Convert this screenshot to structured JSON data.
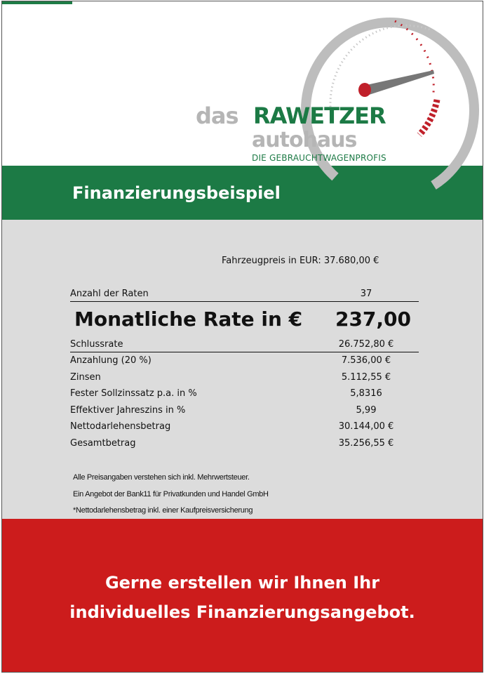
{
  "logo": {
    "das": "das",
    "brand": "RAWETZER",
    "sub": "autohaus",
    "tagline": "DIE GEBRAUCHTWAGENPROFIS"
  },
  "header": {
    "title": "Finanzierungsbeispiel"
  },
  "price": {
    "label": "Fahrzeugpreis in EUR:",
    "value": "37.680,00 €"
  },
  "rows": [
    {
      "label": "Anzahl der Raten",
      "value": "37"
    },
    {
      "label": "Monatliche Rate in €",
      "value": "237,00"
    },
    {
      "label": "Schlussrate",
      "value": "26.752,80 €"
    },
    {
      "label": "Anzahlung (20 %)",
      "value": "7.536,00 €"
    },
    {
      "label": "Zinsen",
      "value": "5.112,55 €"
    },
    {
      "label": "Fester Sollzinssatz p.a. in %",
      "value": "5,8316"
    },
    {
      "label": "Effektiver Jahreszins in %",
      "value": "5,99"
    },
    {
      "label": "Nettodarlehensbetrag",
      "value": "30.144,00 €"
    },
    {
      "label": "Gesamtbetrag",
      "value": "35.256,55 €"
    }
  ],
  "notes": [
    "Alle Preisangaben verstehen sich inkl. Mehrwertsteuer.",
    "Ein Angebot der Bank11 für Privatkunden und Handel GmbH",
    "*Nettodarlehensbetrag inkl. einer Kaufpreisversicherung"
  ],
  "footer": {
    "line1": "Gerne erstellen wir Ihnen Ihr",
    "line2": "individuelles Finanzierungsangebot."
  },
  "colors": {
    "green": "#1c7a45",
    "red": "#cc1c1c",
    "gray": "#dcdcdc"
  }
}
